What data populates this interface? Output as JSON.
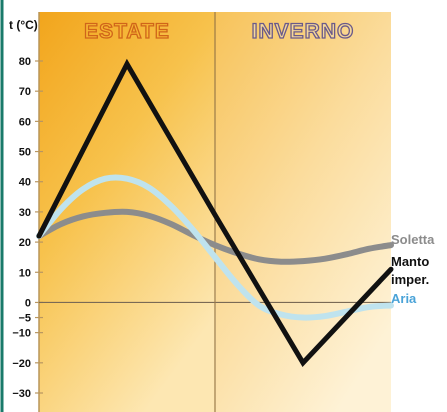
{
  "chart_data": {
    "type": "line",
    "ylabel": "t (°C)",
    "ylim": [
      -33,
      92
    ],
    "xlim": [
      0,
      1
    ],
    "y_ticks": [
      80,
      70,
      60,
      50,
      40,
      30,
      20,
      10,
      0,
      -5,
      -10,
      -20,
      -30
    ],
    "y_tick_labels": [
      "80",
      "70",
      "60",
      "50",
      "40",
      "30",
      "20",
      "10",
      "0",
      "−5",
      "−10",
      "−20",
      "−30"
    ],
    "zero_line": 0,
    "season_divider": 0.5,
    "seasons": [
      {
        "label": "ESTATE",
        "fill": "#f7b733",
        "stroke": "#d0651a"
      },
      {
        "label": "INVERNO",
        "fill": "#f5d79a",
        "stroke": "#6a5a8a"
      }
    ],
    "series": [
      {
        "name": "Soletta",
        "color": "#8c8c8c",
        "width": 6,
        "points": [
          [
            0,
            22
          ],
          [
            0.063,
            26
          ],
          [
            0.125,
            28.5
          ],
          [
            0.188,
            29.7
          ],
          [
            0.25,
            30
          ],
          [
            0.313,
            28.7
          ],
          [
            0.375,
            26
          ],
          [
            0.438,
            22.3
          ],
          [
            0.5,
            19
          ],
          [
            0.563,
            16.3
          ],
          [
            0.625,
            14.3
          ],
          [
            0.688,
            13.5
          ],
          [
            0.75,
            13.7
          ],
          [
            0.813,
            14.5
          ],
          [
            0.875,
            16
          ],
          [
            0.938,
            17.8
          ],
          [
            1,
            19
          ]
        ]
      },
      {
        "name": "Aria",
        "color": "#bfe3ee",
        "width": 6,
        "points": [
          [
            0,
            22
          ],
          [
            0.063,
            31
          ],
          [
            0.125,
            37.5
          ],
          [
            0.188,
            41
          ],
          [
            0.25,
            41
          ],
          [
            0.313,
            38
          ],
          [
            0.375,
            32
          ],
          [
            0.438,
            24
          ],
          [
            0.5,
            15
          ],
          [
            0.563,
            6
          ],
          [
            0.625,
            -1
          ],
          [
            0.688,
            -4
          ],
          [
            0.75,
            -5
          ],
          [
            0.813,
            -4.5
          ],
          [
            0.875,
            -3
          ],
          [
            0.938,
            -1.5
          ],
          [
            1,
            -1
          ]
        ]
      },
      {
        "name": "Manto imper.",
        "color": "#111111",
        "width": 5,
        "points": [
          [
            0,
            22
          ],
          [
            0.25,
            79
          ],
          [
            0.5,
            29
          ],
          [
            0.75,
            -20
          ],
          [
            1,
            11
          ]
        ]
      }
    ],
    "legend": [
      {
        "label": "Soletta",
        "color": "#8c8c8c"
      },
      {
        "label": "Manto",
        "color": "#111111"
      },
      {
        "label": "imper.",
        "color": "#111111"
      },
      {
        "label": "Aria",
        "color": "#4aa3d8"
      }
    ]
  },
  "colors": {
    "frame": "#1a7a6a",
    "grid": "#b89660",
    "zero_line": "#7a6a55",
    "divider": "#9b7b4a"
  }
}
